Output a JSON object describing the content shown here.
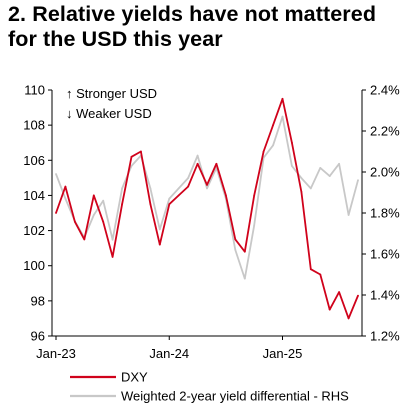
{
  "header": {
    "title": "2. Relative yields have not mattered for the USD this year"
  },
  "chart_data": {
    "type": "line",
    "title": "2. Relative yields have not mattered for the USD this year",
    "annotations": [
      "↑ Stronger USD",
      "↓ Weaker USD"
    ],
    "x_axis": {
      "ticks": [
        "Jan-23",
        "Jan-24",
        "Jan-25"
      ],
      "range": [
        "2023-01",
        "2025-09"
      ]
    },
    "y_axis_left": {
      "range": [
        96,
        110
      ],
      "ticks": [
        "96",
        "98",
        "100",
        "102",
        "104",
        "106",
        "108",
        "110"
      ]
    },
    "y_axis_right": {
      "range": [
        1.2,
        2.4
      ],
      "unit": "%",
      "ticks": [
        "1.2%",
        "1.4%",
        "1.6%",
        "1.8%",
        "2.0%",
        "2.2%",
        "2.4%"
      ]
    },
    "legend": {
      "position": "bottom",
      "items": [
        "DXY",
        "Weighted 2-year yield differential - RHS"
      ]
    },
    "grid": false,
    "x": [
      "2023-01",
      "2023-02",
      "2023-03",
      "2023-04",
      "2023-05",
      "2023-06",
      "2023-07",
      "2023-08",
      "2023-09",
      "2023-10",
      "2023-11",
      "2023-12",
      "2024-01",
      "2024-02",
      "2024-03",
      "2024-04",
      "2024-05",
      "2024-06",
      "2024-07",
      "2024-08",
      "2024-09",
      "2024-10",
      "2024-11",
      "2024-12",
      "2025-01",
      "2025-02",
      "2025-03",
      "2025-04",
      "2025-05",
      "2025-06",
      "2025-07",
      "2025-08",
      "2025-09"
    ],
    "series": [
      {
        "name": "DXY",
        "axis": "left",
        "color": "#d0021b",
        "values": [
          103.0,
          104.5,
          102.5,
          101.5,
          104.0,
          102.5,
          100.5,
          103.5,
          106.2,
          106.5,
          103.5,
          101.2,
          103.5,
          104.0,
          104.5,
          105.8,
          104.6,
          105.8,
          104.0,
          101.5,
          100.8,
          104.0,
          106.5,
          108.0,
          109.5,
          107.0,
          104.2,
          99.8,
          99.5,
          97.5,
          98.5,
          97.0,
          98.3
        ]
      },
      {
        "name": "Weighted 2-year yield differential - RHS",
        "axis": "right",
        "color": "#c8c8c8",
        "values": [
          1.99,
          1.87,
          1.76,
          1.68,
          1.79,
          1.86,
          1.67,
          1.92,
          2.03,
          2.08,
          1.92,
          1.72,
          1.87,
          1.92,
          1.97,
          2.08,
          1.92,
          2.02,
          1.87,
          1.62,
          1.48,
          1.74,
          2.07,
          2.13,
          2.27,
          2.03,
          1.97,
          1.92,
          2.02,
          1.98,
          2.04,
          1.79,
          1.96
        ]
      }
    ]
  }
}
